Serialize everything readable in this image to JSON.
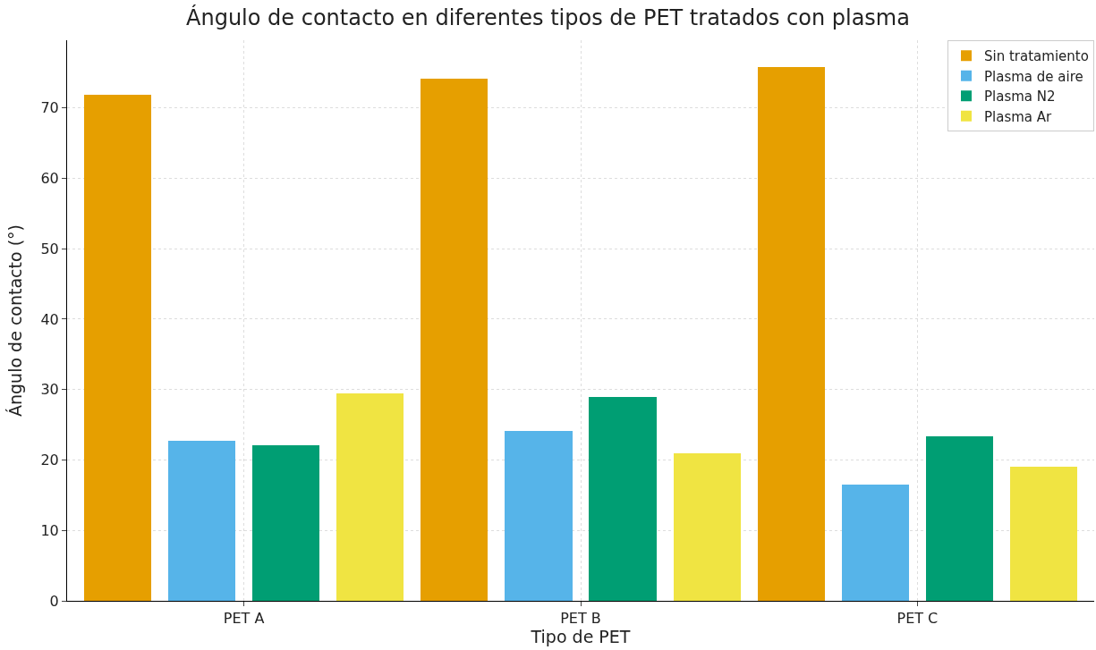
{
  "chart_data": {
    "type": "bar",
    "title": "Ángulo de contacto en diferentes tipos de PET tratados con plasma",
    "xlabel": "Tipo de PET",
    "ylabel": "Ángulo de contacto (°)",
    "categories": [
      "PET A",
      "PET B",
      "PET C"
    ],
    "series": [
      {
        "name": "Sin tratamiento",
        "color": "#e69f00",
        "values": [
          71.8,
          74.1,
          75.8
        ]
      },
      {
        "name": "Plasma de aire",
        "color": "#56b4e9",
        "values": [
          22.7,
          24.1,
          16.5
        ]
      },
      {
        "name": "Plasma N2",
        "color": "#009e73",
        "values": [
          22.1,
          29.0,
          23.3
        ]
      },
      {
        "name": "Plasma Ar",
        "color": "#f0e442",
        "values": [
          29.4,
          20.9,
          19.0
        ]
      }
    ],
    "ylim": [
      0,
      79.6
    ],
    "yticks": [
      0,
      10,
      20,
      30,
      40,
      50,
      60,
      70
    ],
    "grid": true,
    "legend": "top right"
  }
}
